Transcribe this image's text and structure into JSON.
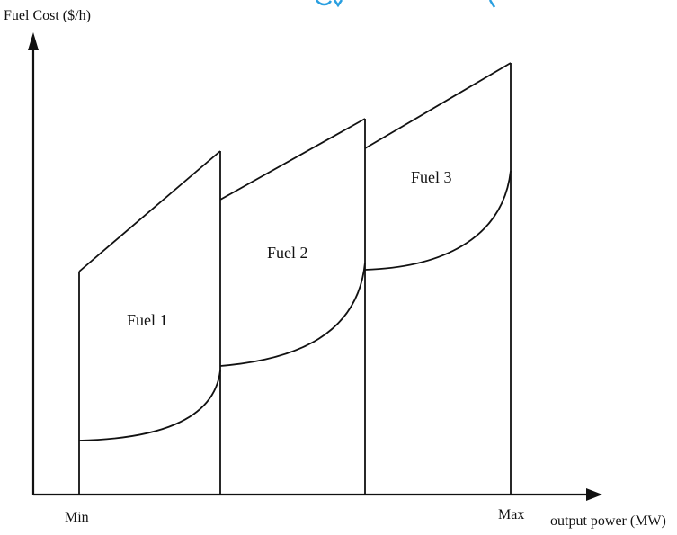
{
  "labels": {
    "y_axis": "Fuel Cost ($/h)",
    "x_axis": "output power (MW)",
    "x_min": "Min",
    "x_max": "Max"
  },
  "regions": [
    {
      "label": "Fuel 1"
    },
    {
      "label": "Fuel 2"
    },
    {
      "label": "Fuel 3"
    }
  ],
  "colors": {
    "ink": "#111111",
    "top_text_fragment": "#2a9fe0"
  }
}
